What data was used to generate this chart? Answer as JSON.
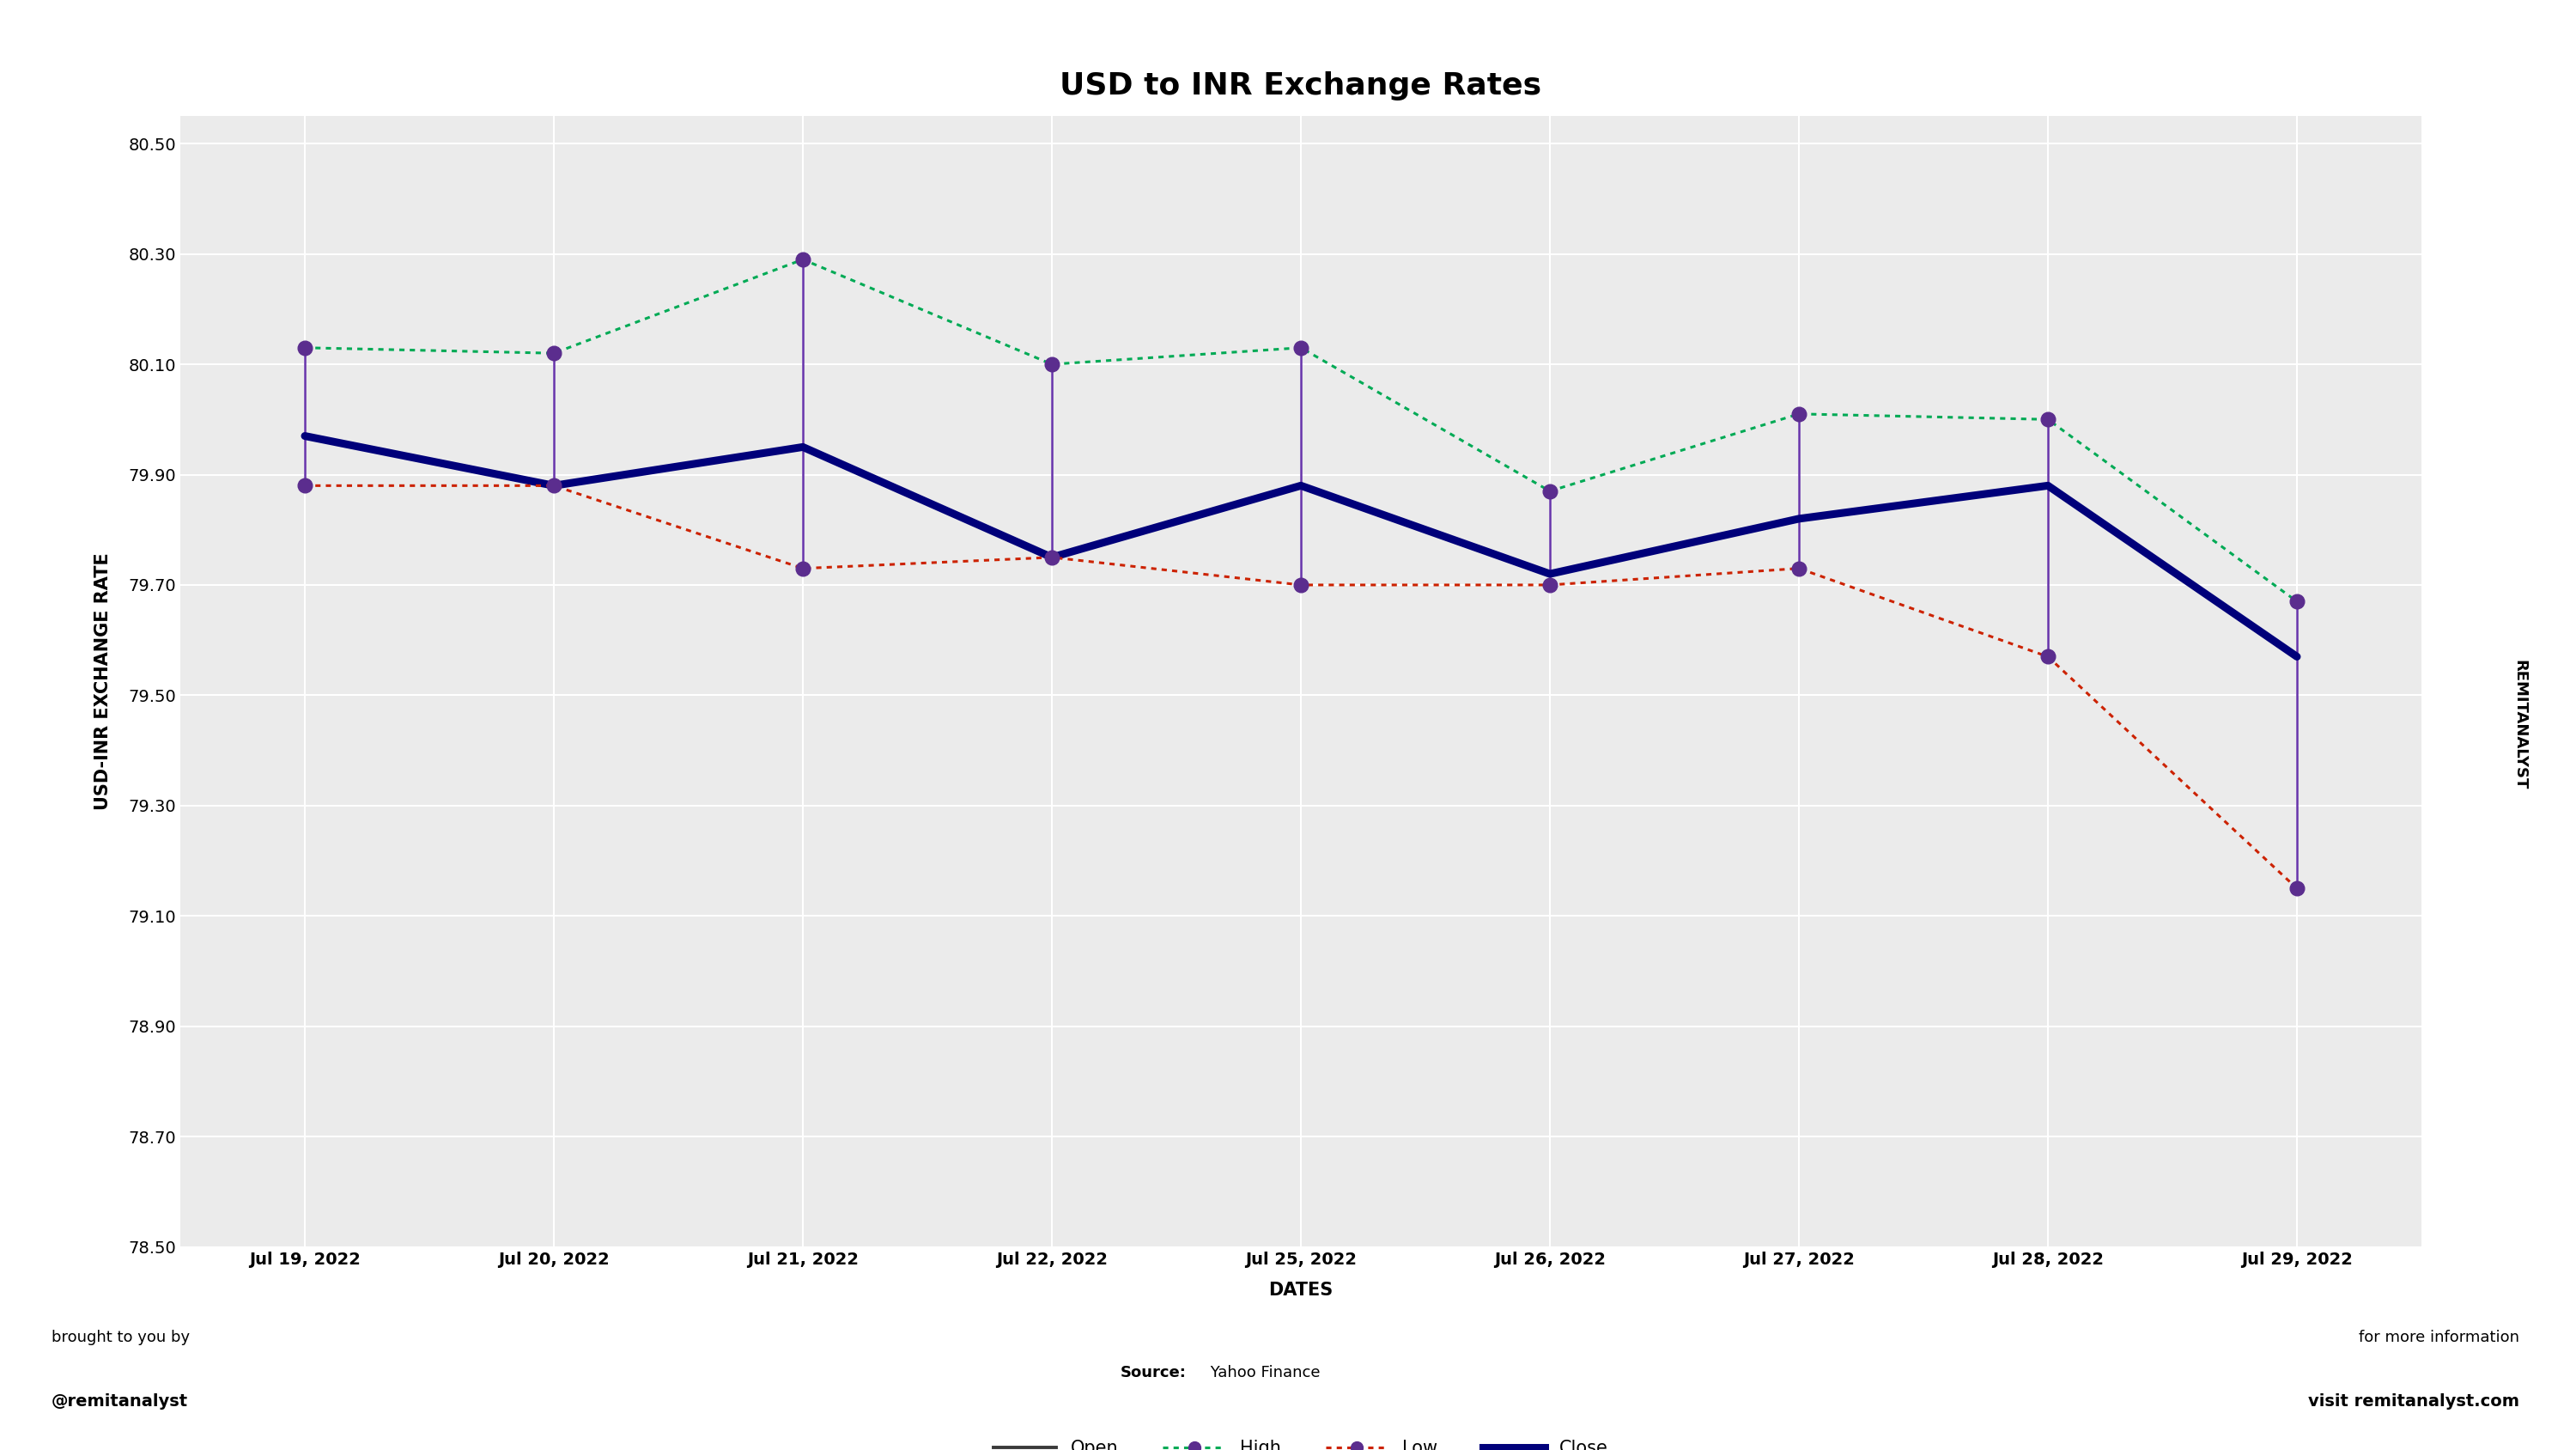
{
  "title": "USD to INR Exchange Rates",
  "xlabel": "DATES",
  "ylabel": "USD-INR EXCHANGE RATE",
  "dates": [
    "Jul 19, 2022",
    "Jul 20, 2022",
    "Jul 21, 2022",
    "Jul 22, 2022",
    "Jul 25, 2022",
    "Jul 26, 2022",
    "Jul 27, 2022",
    "Jul 28, 2022",
    "Jul 29, 2022"
  ],
  "open": [
    79.97,
    79.88,
    79.95,
    79.75,
    79.88,
    79.72,
    79.82,
    79.88,
    79.57
  ],
  "high": [
    80.13,
    80.12,
    80.29,
    80.1,
    80.13,
    79.87,
    80.01,
    80.0,
    79.67
  ],
  "low": [
    79.88,
    79.88,
    79.73,
    79.75,
    79.7,
    79.7,
    79.73,
    79.57,
    79.15
  ],
  "close": [
    79.97,
    79.88,
    79.95,
    79.75,
    79.88,
    79.72,
    79.82,
    79.88,
    79.57
  ],
  "ylim": [
    78.5,
    80.55
  ],
  "yticks": [
    78.5,
    78.7,
    78.9,
    79.1,
    79.3,
    79.5,
    79.7,
    79.9,
    80.1,
    80.3,
    80.5
  ],
  "open_color": "#3a3a3a",
  "high_color": "#00aa55",
  "low_color": "#cc2200",
  "close_color": "#00007a",
  "marker_color": "#5B2D8E",
  "candlestick_color": "#6633aa",
  "watermark_left_line1": "brought to you by",
  "watermark_left_line2": "@remitanalyst",
  "watermark_center_bold": "Source:",
  "watermark_center_normal": " Yahoo Finance",
  "watermark_right_line1": "for more information",
  "watermark_right_line2": "visit remitanalyst.com",
  "side_label": "REMITANALYST",
  "title_fontsize": 26,
  "axis_label_fontsize": 15,
  "tick_fontsize": 14,
  "legend_fontsize": 15
}
